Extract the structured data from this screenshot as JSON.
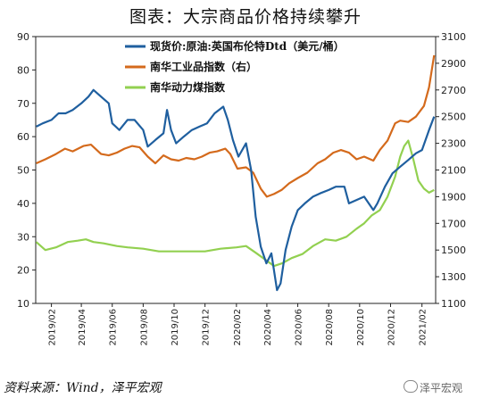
{
  "title": "图表：大宗商品价格持续攀升",
  "source": "资料来源：Wind，泽平宏观",
  "watermark": "泽平宏观",
  "chart_data": {
    "type": "line",
    "x_ticks": [
      "2019/02",
      "2019/04",
      "2019/06",
      "2019/08",
      "2019/10",
      "2019/12",
      "2020/02",
      "2020/04",
      "2020/06",
      "2020/08",
      "2020/10",
      "2020/12",
      "2021/02"
    ],
    "x_range": [
      "2019-01-01",
      "2021-02-28"
    ],
    "ylim_left": [
      10,
      90
    ],
    "yticks_left": [
      10,
      20,
      30,
      40,
      50,
      60,
      70,
      80,
      90
    ],
    "ylim_right": [
      1100,
      3100
    ],
    "yticks_right": [
      1100,
      1300,
      1500,
      1700,
      1900,
      2100,
      2300,
      2500,
      2700,
      2900,
      3100
    ],
    "legend_position": "top-right",
    "series": [
      {
        "name": "现货价:原油:英国布伦特Dtd（美元/桶）",
        "axis": "left",
        "color": "#1f5f9f",
        "points": [
          [
            "2019-01-02",
            63
          ],
          [
            "2019-01-15",
            64
          ],
          [
            "2019-02-01",
            65
          ],
          [
            "2019-02-15",
            67
          ],
          [
            "2019-03-01",
            67
          ],
          [
            "2019-03-15",
            68
          ],
          [
            "2019-04-01",
            70
          ],
          [
            "2019-04-15",
            72
          ],
          [
            "2019-04-25",
            74
          ],
          [
            "2019-05-10",
            72
          ],
          [
            "2019-05-25",
            70
          ],
          [
            "2019-06-01",
            64
          ],
          [
            "2019-06-15",
            62
          ],
          [
            "2019-07-01",
            65
          ],
          [
            "2019-07-15",
            65
          ],
          [
            "2019-08-01",
            62
          ],
          [
            "2019-08-10",
            57
          ],
          [
            "2019-08-25",
            59
          ],
          [
            "2019-09-10",
            61
          ],
          [
            "2019-09-17",
            68
          ],
          [
            "2019-09-25",
            62
          ],
          [
            "2019-10-05",
            58
          ],
          [
            "2019-10-20",
            60
          ],
          [
            "2019-11-05",
            62
          ],
          [
            "2019-11-20",
            63
          ],
          [
            "2019-12-05",
            64
          ],
          [
            "2019-12-20",
            67
          ],
          [
            "2020-01-06",
            69
          ],
          [
            "2020-01-15",
            65
          ],
          [
            "2020-01-25",
            59
          ],
          [
            "2020-02-05",
            54
          ],
          [
            "2020-02-20",
            58
          ],
          [
            "2020-03-01",
            50
          ],
          [
            "2020-03-10",
            36
          ],
          [
            "2020-03-20",
            27
          ],
          [
            "2020-03-31",
            22
          ],
          [
            "2020-04-10",
            25
          ],
          [
            "2020-04-21",
            14
          ],
          [
            "2020-04-28",
            16
          ],
          [
            "2020-05-08",
            26
          ],
          [
            "2020-05-20",
            33
          ],
          [
            "2020-06-01",
            38
          ],
          [
            "2020-06-15",
            40
          ],
          [
            "2020-07-01",
            42
          ],
          [
            "2020-07-15",
            43
          ],
          [
            "2020-08-01",
            44
          ],
          [
            "2020-08-15",
            45
          ],
          [
            "2020-09-01",
            45
          ],
          [
            "2020-09-10",
            40
          ],
          [
            "2020-09-25",
            41
          ],
          [
            "2020-10-10",
            42
          ],
          [
            "2020-10-28",
            38
          ],
          [
            "2020-11-05",
            40
          ],
          [
            "2020-11-20",
            45
          ],
          [
            "2020-12-05",
            49
          ],
          [
            "2020-12-20",
            51
          ],
          [
            "2021-01-05",
            53
          ],
          [
            "2021-01-20",
            55
          ],
          [
            "2021-02-01",
            56
          ],
          [
            "2021-02-15",
            62
          ],
          [
            "2021-02-25",
            66
          ]
        ]
      },
      {
        "name": "南华工业品指数（右）",
        "axis": "right",
        "color": "#d46a1c",
        "points": [
          [
            "2019-01-02",
            2150
          ],
          [
            "2019-01-20",
            2180
          ],
          [
            "2019-02-10",
            2220
          ],
          [
            "2019-02-28",
            2260
          ],
          [
            "2019-03-15",
            2240
          ],
          [
            "2019-04-05",
            2280
          ],
          [
            "2019-04-20",
            2290
          ],
          [
            "2019-05-10",
            2220
          ],
          [
            "2019-05-25",
            2210
          ],
          [
            "2019-06-10",
            2230
          ],
          [
            "2019-06-25",
            2260
          ],
          [
            "2019-07-10",
            2280
          ],
          [
            "2019-07-25",
            2270
          ],
          [
            "2019-08-10",
            2200
          ],
          [
            "2019-08-25",
            2150
          ],
          [
            "2019-09-10",
            2210
          ],
          [
            "2019-09-25",
            2180
          ],
          [
            "2019-10-10",
            2170
          ],
          [
            "2019-10-25",
            2190
          ],
          [
            "2019-11-10",
            2180
          ],
          [
            "2019-11-25",
            2200
          ],
          [
            "2019-12-10",
            2230
          ],
          [
            "2019-12-25",
            2240
          ],
          [
            "2020-01-10",
            2260
          ],
          [
            "2020-01-20",
            2220
          ],
          [
            "2020-02-03",
            2110
          ],
          [
            "2020-02-20",
            2120
          ],
          [
            "2020-03-05",
            2080
          ],
          [
            "2020-03-20",
            1960
          ],
          [
            "2020-04-01",
            1900
          ],
          [
            "2020-04-15",
            1920
          ],
          [
            "2020-04-30",
            1950
          ],
          [
            "2020-05-15",
            2000
          ],
          [
            "2020-06-01",
            2040
          ],
          [
            "2020-06-20",
            2080
          ],
          [
            "2020-07-10",
            2150
          ],
          [
            "2020-07-25",
            2180
          ],
          [
            "2020-08-10",
            2230
          ],
          [
            "2020-08-25",
            2250
          ],
          [
            "2020-09-10",
            2230
          ],
          [
            "2020-09-25",
            2180
          ],
          [
            "2020-10-10",
            2200
          ],
          [
            "2020-10-28",
            2170
          ],
          [
            "2020-11-10",
            2250
          ],
          [
            "2020-11-25",
            2320
          ],
          [
            "2020-12-10",
            2450
          ],
          [
            "2020-12-20",
            2470
          ],
          [
            "2021-01-05",
            2460
          ],
          [
            "2021-01-20",
            2500
          ],
          [
            "2021-02-05",
            2580
          ],
          [
            "2021-02-15",
            2720
          ],
          [
            "2021-02-25",
            2960
          ]
        ]
      },
      {
        "name": "南华动力煤指数",
        "axis": "right",
        "color": "#92d050",
        "points": [
          [
            "2019-01-02",
            1560
          ],
          [
            "2019-01-20",
            1500
          ],
          [
            "2019-02-10",
            1520
          ],
          [
            "2019-03-05",
            1560
          ],
          [
            "2019-03-25",
            1570
          ],
          [
            "2019-04-10",
            1580
          ],
          [
            "2019-04-25",
            1560
          ],
          [
            "2019-05-15",
            1550
          ],
          [
            "2019-06-10",
            1530
          ],
          [
            "2019-07-01",
            1520
          ],
          [
            "2019-08-01",
            1510
          ],
          [
            "2019-09-01",
            1490
          ],
          [
            "2019-10-01",
            1490
          ],
          [
            "2019-11-01",
            1490
          ],
          [
            "2019-12-01",
            1490
          ],
          [
            "2020-01-01",
            1510
          ],
          [
            "2020-02-01",
            1520
          ],
          [
            "2020-02-20",
            1530
          ],
          [
            "2020-03-10",
            1480
          ],
          [
            "2020-04-01",
            1420
          ],
          [
            "2020-04-15",
            1380
          ],
          [
            "2020-05-01",
            1400
          ],
          [
            "2020-05-20",
            1440
          ],
          [
            "2020-06-10",
            1470
          ],
          [
            "2020-07-01",
            1530
          ],
          [
            "2020-07-25",
            1580
          ],
          [
            "2020-08-15",
            1570
          ],
          [
            "2020-09-05",
            1600
          ],
          [
            "2020-09-25",
            1660
          ],
          [
            "2020-10-10",
            1700
          ],
          [
            "2020-10-25",
            1760
          ],
          [
            "2020-11-10",
            1800
          ],
          [
            "2020-11-25",
            1900
          ],
          [
            "2020-12-10",
            2050
          ],
          [
            "2020-12-20",
            2200
          ],
          [
            "2020-12-28",
            2280
          ],
          [
            "2021-01-05",
            2320
          ],
          [
            "2021-01-15",
            2180
          ],
          [
            "2021-01-25",
            2020
          ],
          [
            "2021-02-05",
            1960
          ],
          [
            "2021-02-15",
            1930
          ],
          [
            "2021-02-25",
            1950
          ]
        ]
      }
    ]
  }
}
